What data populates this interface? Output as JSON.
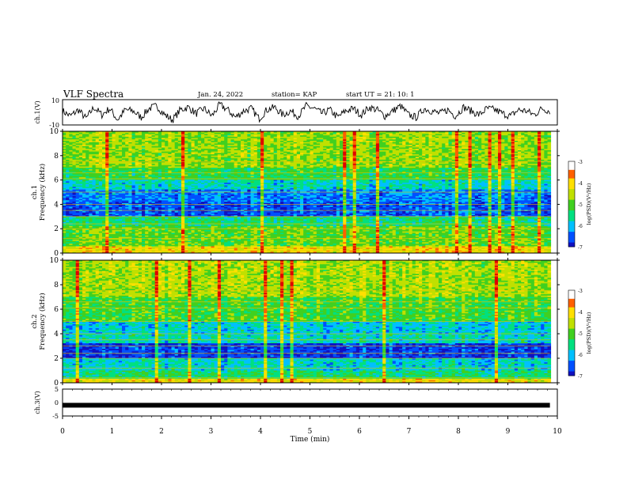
{
  "header": {
    "title": "VLF Spectra",
    "date": "Jan. 24, 2022",
    "station": "station= KAP",
    "start": "start  UT =   21: 10: 1"
  },
  "chart_data": [
    {
      "type": "line",
      "panel": "ch1-waveform",
      "ylabel": "ch.1(V)",
      "ylim": [
        -10,
        10
      ],
      "yticks": [
        "10",
        "-10"
      ],
      "xlim": [
        0,
        10
      ],
      "series_description": "noisy amplitude trace, roughly between -8 and 8 V",
      "samples": [
        1,
        -3,
        2,
        -5,
        4,
        -2,
        3,
        -6,
        2,
        1,
        -4,
        3,
        5,
        -2,
        -6,
        2,
        4,
        -1,
        3,
        -3,
        6,
        2,
        -4,
        1,
        3,
        -5,
        2,
        4,
        -2,
        1,
        -3,
        5,
        3,
        -1,
        2,
        -4,
        1,
        3,
        -2,
        4,
        2,
        -3,
        1,
        5,
        -2,
        -4,
        3,
        1,
        -1,
        2,
        -3,
        4,
        1,
        -2,
        3,
        2,
        -1,
        -3,
        2,
        1,
        -2,
        3,
        1
      ]
    },
    {
      "type": "heatmap",
      "panel": "ch1-spectrogram",
      "ylabel": "ch.1 Frequency (kHz)",
      "ylim": [
        0,
        10
      ],
      "yticks": [
        "0",
        "2",
        "4",
        "6",
        "8",
        "10"
      ],
      "xlim": [
        0,
        10
      ],
      "colorbar": {
        "label": "log(PSD)(V²/Hz)",
        "range": [
          -7,
          -3
        ],
        "ticks": [
          "-3",
          "-4",
          "-5",
          "-6",
          "-7"
        ]
      }
    },
    {
      "type": "heatmap",
      "panel": "ch2-spectrogram",
      "ylabel": "ch.2 Frequency (kHz)",
      "ylim": [
        0,
        10
      ],
      "yticks": [
        "0",
        "2",
        "4",
        "6",
        "8",
        "10"
      ],
      "xlim": [
        0,
        10
      ],
      "colorbar": {
        "label": "log(PSD)(V²/Hz)",
        "range": [
          -7,
          -3
        ],
        "ticks": [
          "-3",
          "-4",
          "-5",
          "-6",
          "-7"
        ]
      }
    },
    {
      "type": "line",
      "panel": "ch3-waveform",
      "ylabel": "ch.3(V)",
      "ylim": [
        -5,
        5
      ],
      "yticks": [
        "5",
        "0",
        "-5"
      ],
      "xlim": [
        0,
        10
      ],
      "series_description": "flat signal near -1 V",
      "level": -1
    }
  ],
  "xaxis": {
    "label": "Time  (min)",
    "ticks": [
      "0",
      "1",
      "2",
      "3",
      "4",
      "5",
      "6",
      "7",
      "8",
      "9",
      "10"
    ]
  },
  "colors": {
    "colormap": [
      "#1010c0",
      "#0050ff",
      "#00c0ff",
      "#00e080",
      "#40d020",
      "#c0e000",
      "#ffe000",
      "#ff6000",
      "#e00000",
      "#ffffff"
    ]
  }
}
